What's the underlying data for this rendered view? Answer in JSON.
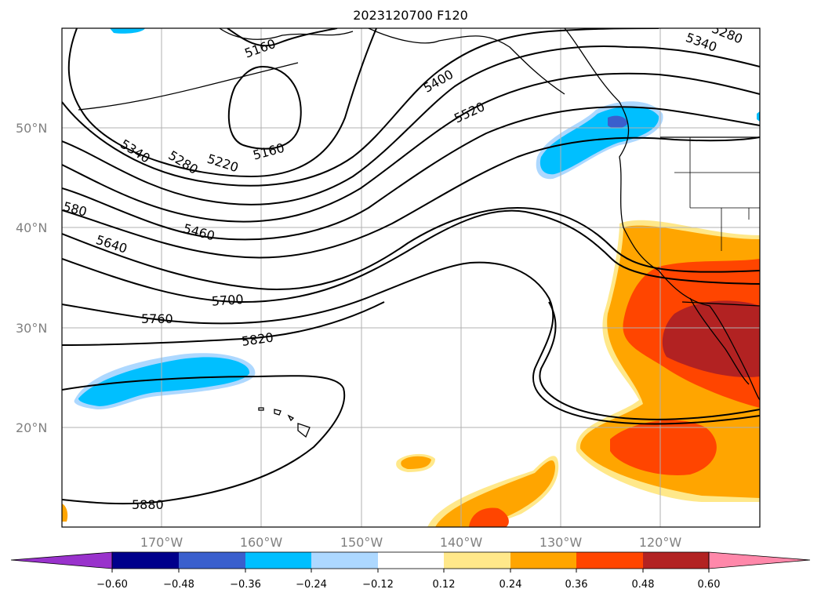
{
  "title": "2023120700 F120",
  "map": {
    "lat_labels": [
      "50°N",
      "40°N",
      "30°N",
      "20°N"
    ],
    "lon_labels": [
      "170°W",
      "160°W",
      "150°W",
      "140°W",
      "130°W",
      "120°W"
    ],
    "contour_labels": [
      "5160",
      "5160",
      "5280",
      "5340",
      "5400",
      "5520",
      "5340",
      "5280",
      "5220",
      "5160",
      "580",
      "5460",
      "5640",
      "5700",
      "5760",
      "5820",
      "5880"
    ]
  },
  "colorbar": {
    "ticks": [
      "−0.60",
      "−0.48",
      "−0.36",
      "−0.24",
      "−0.12",
      "0.12",
      "0.24",
      "0.36",
      "0.48",
      "0.60"
    ],
    "colors": [
      "#9932cc",
      "#00008b",
      "#3a5fcd",
      "#00bfff",
      "#add8ff",
      "#ffffff",
      "#ffe88a",
      "#ffa500",
      "#ff4500",
      "#b22222",
      "#ff88aa"
    ]
  }
}
